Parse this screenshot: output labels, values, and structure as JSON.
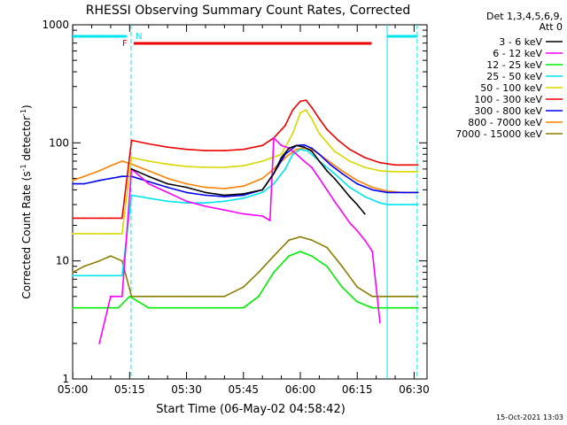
{
  "chart_data": {
    "type": "line",
    "title": "RHESSI Observing Summary Count Rates, Corrected",
    "xlabel": "Start Time (06-May-02 04:58:42)",
    "ylabel_main": "Corrected Count Rate (s",
    "ylabel_sup1": "-1",
    "ylabel_mid": " detector",
    "ylabel_sup2": "-1",
    "ylabel_end": ")",
    "yscale": "log",
    "ylim": [
      1,
      1000
    ],
    "xlim_minutes": [
      4.97,
      98.4
    ],
    "x_tick_labels": [
      "05:00",
      "05:15",
      "05:30",
      "05:45",
      "06:00",
      "06:15",
      "06:30"
    ],
    "x_tick_values": [
      5,
      20,
      35,
      50,
      65,
      80,
      95
    ],
    "y_tick_labels": [
      "1",
      "10",
      "100",
      "1000"
    ],
    "y_tick_values": [
      1,
      10,
      100,
      1000
    ],
    "legend": {
      "header_line1": "Det 1,3,4,5,6,9,",
      "header_line2": "Att 0",
      "entries": [
        {
          "name": "3 - 6 keV",
          "color": "#000000"
        },
        {
          "name": "6 - 12 keV",
          "color": "#ff00ff"
        },
        {
          "name": "12 - 25 keV",
          "color": "#00ee00"
        },
        {
          "name": "25 - 50 keV",
          "color": "#00e5ee"
        },
        {
          "name": "50 - 100 keV",
          "color": "#d8d800"
        },
        {
          "name": "100 - 300 keV",
          "color": "#ee0000"
        },
        {
          "name": "300 - 800 keV",
          "color": "#0000ee"
        },
        {
          "name": "800 - 7000 keV",
          "color": "#ff8000"
        },
        {
          "name": "7000 - 15000 keV",
          "color": "#8b7d00"
        }
      ]
    },
    "flags": {
      "f_label": "F",
      "n_label": "N",
      "fill_color": "#ee0000",
      "night_color": "#00e5ee"
    },
    "night_boundaries_minutes": [
      20.6,
      87.9,
      95.8
    ],
    "series": [
      {
        "name": "3 - 6 keV",
        "color": "#000000",
        "x": [
          20.5,
          25,
          30,
          35,
          40,
          45,
          50,
          55,
          58,
          60,
          62,
          64,
          66,
          68,
          70,
          72,
          74,
          76,
          78,
          80,
          82
        ],
        "y": [
          60,
          52,
          45,
          42,
          38,
          36,
          37,
          40,
          55,
          75,
          90,
          95,
          92,
          85,
          70,
          58,
          50,
          42,
          35,
          30,
          25
        ]
      },
      {
        "name": "6 - 12 keV",
        "color": "#ff00ff",
        "x": [
          12,
          15,
          18,
          20.5,
          25,
          30,
          35,
          40,
          45,
          50,
          55,
          57,
          58,
          60,
          62,
          64,
          66,
          68,
          70,
          72,
          74,
          76,
          78,
          80,
          82,
          84,
          86
        ],
        "y": [
          2,
          5,
          5,
          60,
          45,
          38,
          32,
          29,
          27,
          25,
          24,
          22,
          110,
          95,
          90,
          80,
          70,
          62,
          50,
          40,
          32,
          26,
          21,
          18,
          15,
          12,
          3
        ]
      },
      {
        "name": "12 - 25 keV",
        "color": "#00ee00",
        "x": [
          5,
          10,
          15,
          17,
          20,
          25,
          30,
          35,
          40,
          45,
          50,
          54,
          58,
          62,
          65,
          68,
          72,
          76,
          80,
          84,
          88,
          92,
          96
        ],
        "y": [
          4,
          4,
          4,
          4,
          5,
          4,
          4,
          4,
          4,
          4,
          4,
          5,
          8,
          11,
          12,
          11,
          9,
          6,
          4.5,
          4,
          4,
          4,
          4
        ]
      },
      {
        "name": "25 - 50 keV",
        "color": "#00e5ee",
        "x": [
          5,
          8,
          12,
          15,
          18,
          20.5,
          25,
          30,
          35,
          40,
          45,
          50,
          55,
          58,
          61,
          63,
          65,
          67,
          70,
          74,
          78,
          82,
          86,
          88,
          92,
          96
        ],
        "y": [
          7.5,
          7.5,
          7.5,
          7.5,
          7.5,
          36,
          34,
          32,
          31,
          31,
          32,
          34,
          38,
          45,
          60,
          80,
          88,
          85,
          70,
          55,
          42,
          35,
          31,
          30,
          30,
          30
        ]
      },
      {
        "name": "50 - 100 keV",
        "color": "#d8d800",
        "x": [
          5,
          8,
          12,
          15,
          18,
          20.5,
          25,
          30,
          35,
          40,
          45,
          50,
          55,
          60,
          63,
          65,
          66.5,
          68,
          70,
          74,
          78,
          82,
          86,
          90,
          96
        ],
        "y": [
          17,
          17,
          17,
          17,
          17,
          75,
          70,
          66,
          63,
          62,
          62,
          64,
          70,
          80,
          120,
          180,
          190,
          160,
          120,
          85,
          70,
          62,
          58,
          57,
          57
        ]
      },
      {
        "name": "100 - 300 keV",
        "color": "#ee0000",
        "x": [
          5,
          8,
          12,
          15,
          18,
          20.5,
          25,
          30,
          35,
          40,
          45,
          50,
          55,
          58,
          61,
          63,
          65,
          66.5,
          68,
          70,
          72,
          75,
          78,
          82,
          86,
          90,
          96
        ],
        "y": [
          23,
          23,
          23,
          23,
          23,
          105,
          98,
          92,
          88,
          86,
          86,
          88,
          95,
          110,
          140,
          190,
          225,
          230,
          200,
          160,
          130,
          105,
          88,
          75,
          68,
          65,
          65
        ]
      },
      {
        "name": "300 - 800 keV",
        "color": "#0000ee",
        "x": [
          5,
          8,
          12,
          15,
          18,
          20.5,
          25,
          30,
          35,
          40,
          45,
          50,
          55,
          58,
          61,
          64,
          66,
          68,
          70,
          73,
          76,
          80,
          84,
          88,
          92,
          96
        ],
        "y": [
          45,
          45,
          48,
          50,
          52,
          52,
          47,
          42,
          38,
          36,
          35,
          36,
          40,
          55,
          80,
          95,
          96,
          90,
          80,
          65,
          55,
          45,
          40,
          38,
          38,
          38
        ]
      },
      {
        "name": "800 - 7000 keV",
        "color": "#ff8000",
        "x": [
          5,
          8,
          12,
          15,
          18,
          20.5,
          25,
          30,
          35,
          40,
          45,
          50,
          55,
          58,
          61,
          64,
          66,
          68,
          70,
          73,
          76,
          80,
          84,
          88,
          92,
          96
        ],
        "y": [
          48,
          52,
          58,
          64,
          70,
          66,
          58,
          50,
          45,
          42,
          41,
          43,
          50,
          60,
          75,
          88,
          90,
          88,
          80,
          68,
          58,
          48,
          42,
          39,
          38,
          38
        ]
      },
      {
        "name": "7000 - 15000 keV",
        "color": "#8b7d00",
        "x": [
          5,
          8,
          12,
          15,
          18,
          20.5,
          25,
          30,
          35,
          40,
          45,
          50,
          54,
          58,
          62,
          65,
          68,
          72,
          76,
          80,
          84,
          88,
          92,
          96
        ],
        "y": [
          8,
          9,
          10,
          11,
          10,
          5,
          5,
          5,
          5,
          5,
          5,
          6,
          8,
          11,
          15,
          16,
          15,
          13,
          9,
          6,
          5,
          5,
          5,
          5
        ]
      }
    ]
  },
  "footer": {
    "timestamp": "15-Oct-2021 13:03"
  }
}
